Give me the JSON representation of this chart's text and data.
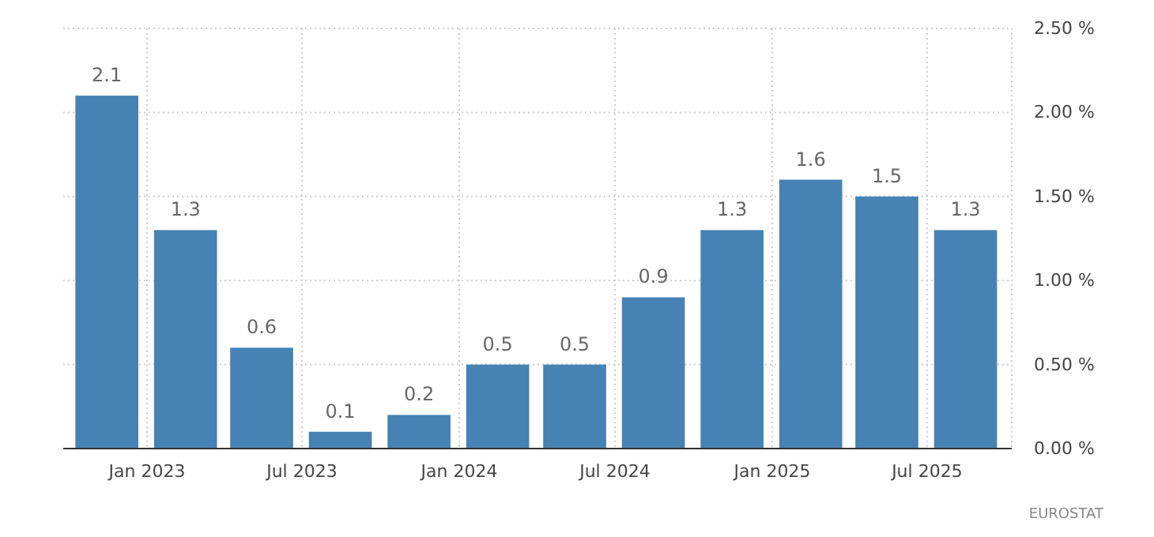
{
  "chart_data": {
    "type": "bar",
    "x": [
      "2022-11-15",
      "2023-02-15",
      "2023-05-15",
      "2023-08-15",
      "2023-11-15",
      "2024-02-15",
      "2024-05-15",
      "2024-08-15",
      "2024-11-15",
      "2025-02-15",
      "2025-05-15",
      "2025-08-15"
    ],
    "values": [
      2.1,
      1.3,
      0.6,
      0.1,
      0.2,
      0.5,
      0.5,
      0.9,
      1.3,
      1.6,
      1.5,
      1.3
    ],
    "color": "#4682b4",
    "data_labels": true,
    "xlim": [
      "2022-09-25",
      "2025-10-08"
    ],
    "xticks": [
      {
        "value": "2023-01-01",
        "label": "Jan 2023"
      },
      {
        "value": "2023-07-01",
        "label": "Jul 2023"
      },
      {
        "value": "2024-01-01",
        "label": "Jan 2024"
      },
      {
        "value": "2024-07-01",
        "label": "Jul 2024"
      },
      {
        "value": "2025-01-01",
        "label": "Jan 2025"
      },
      {
        "value": "2025-07-01",
        "label": "Jul 2025"
      }
    ],
    "ylim": [
      0,
      2.5
    ],
    "yticks": [
      {
        "value": 0,
        "label": "0.00 %"
      },
      {
        "value": 0.5,
        "label": "0.50 %"
      },
      {
        "value": 1,
        "label": "1.00 %"
      },
      {
        "value": 1.5,
        "label": "1.50 %"
      },
      {
        "value": 2,
        "label": "2.00 %"
      },
      {
        "value": 2.5,
        "label": "2.50 %"
      }
    ],
    "grid": true,
    "annotations": [
      "EUROSTAT"
    ]
  }
}
